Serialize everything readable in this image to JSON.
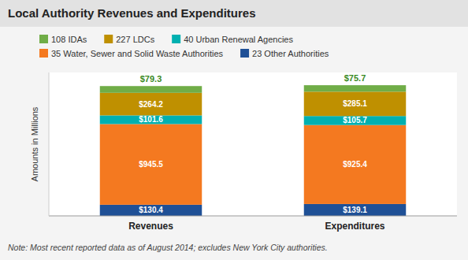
{
  "chart_data": {
    "type": "bar",
    "stacked": true,
    "data_labels": true,
    "tick_labels": "x",
    "title": "Local Authority Revenues and Expenditures",
    "categories": [
      "Revenues",
      "Expenditures"
    ],
    "series": [
      {
        "name": "23 Other Authorities",
        "color": "#1F5096",
        "values": [
          130.4,
          139.1
        ],
        "value_labels": [
          "$130.4",
          "$139.1"
        ]
      },
      {
        "name": "35 Water, Sewer and Solid Waste Authorities",
        "color": "#F47920",
        "values": [
          945.5,
          925.4
        ],
        "value_labels": [
          "$945.5",
          "$925.4"
        ]
      },
      {
        "name": "40 Urban Renewal Agencies",
        "color": "#00B0B0",
        "values": [
          101.6,
          105.7
        ],
        "value_labels": [
          "$101.6",
          "$105.7"
        ]
      },
      {
        "name": "227 LDCs",
        "color": "#BF9000",
        "values": [
          264.2,
          285.1
        ],
        "value_labels": [
          "$264.2",
          "$285.1"
        ]
      },
      {
        "name": "108 IDAs",
        "color": "#70AD47",
        "values": [
          79.3,
          75.7
        ],
        "value_labels": [
          "$79.3",
          "$75.7"
        ]
      }
    ],
    "ylabel": "Amounts in Millions",
    "ylim": [
      0,
      1680
    ],
    "annotation": "Note: Most recent reported data as of August 2014; excludes New York City authorities."
  }
}
